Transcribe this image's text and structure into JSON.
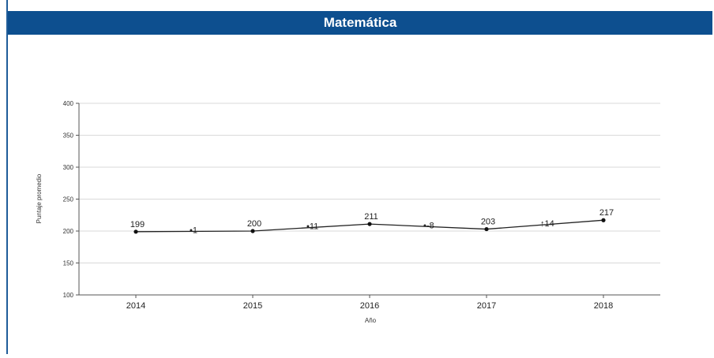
{
  "header": {
    "title": "Matemática"
  },
  "chart_data": {
    "type": "line",
    "categories": [
      "2014",
      "2015",
      "2016",
      "2017",
      "2018"
    ],
    "series": [
      {
        "values": [
          199,
          200,
          211,
          203,
          217
        ]
      }
    ],
    "differences": [
      {
        "label": "•1",
        "value": 1
      },
      {
        "label": "•11",
        "value": 11
      },
      {
        "label": "•-8",
        "value": -8
      },
      {
        "label": "↑14",
        "value": 14
      }
    ],
    "xlabel": "Año",
    "ylabel": "Puntaje promedio",
    "ylim": [
      100,
      400
    ],
    "yticks": [
      100,
      150,
      200,
      250,
      300,
      350,
      400
    ],
    "grid": true,
    "colors": {
      "header": "#0d4f8f",
      "line": "#222222",
      "grid": "#d9d9d9"
    }
  }
}
